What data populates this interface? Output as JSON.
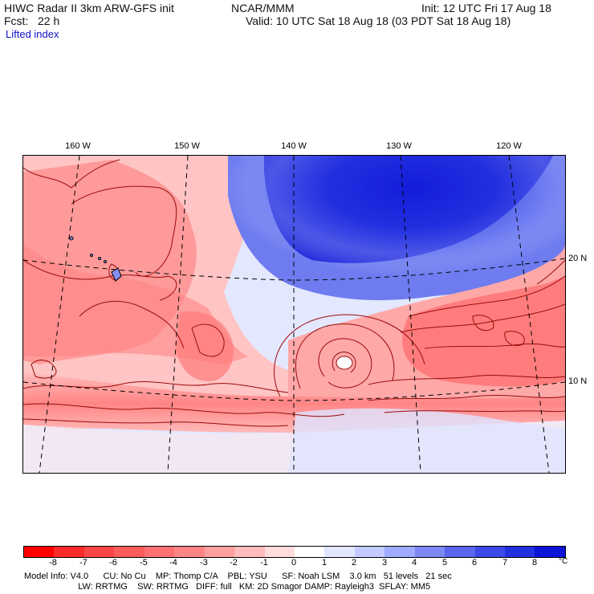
{
  "header": {
    "title": "HIWC Radar II 3km ARW-GFS init",
    "center": "NCAR/MMM",
    "init": "Init: 12 UTC Fri 17 Aug 18",
    "fcst": "Fcst:   22 h",
    "valid": "Valid: 10 UTC Sat 18 Aug 18 (03 PDT Sat 18 Aug 18)",
    "field": "Lifted index"
  },
  "map": {
    "longitude_labels": [
      "160 W",
      "150 W",
      "140 W",
      "130 W",
      "120 W"
    ],
    "latitude_labels": [
      "20 N",
      "10 N"
    ],
    "colors": {
      "negative": "#f04040",
      "positive": "#1a2ee0",
      "contour": "#9a0a0a",
      "grid": "#000000"
    }
  },
  "colorbar": {
    "ticks": [
      "-8",
      "-7",
      "-6",
      "-5",
      "-4",
      "-3",
      "-2",
      "-1",
      "0",
      "1",
      "2",
      "3",
      "4",
      "5",
      "6",
      "7",
      "8"
    ],
    "unit": "°C",
    "colors": [
      "#ff0000",
      "#ff2a2a",
      "#ff4545",
      "#ff5c5c",
      "#ff7070",
      "#ff8585",
      "#ffa0a0",
      "#ffbcbc",
      "#ffdcdc",
      "#ffffff",
      "#e2e6ff",
      "#c4ccff",
      "#a0aaff",
      "#7d88f5",
      "#5a66ee",
      "#3a48e6",
      "#2230e0",
      "#0b14d8"
    ]
  },
  "model_info": {
    "line1": "Model Info: V4.0      CU: No Cu    MP: Thomp C/A    PBL: YSU      SF: Noah LSM    3.0 km   51 levels   21 sec",
    "line2": "                      LW: RRTMG    SW: RRTMG   DIFF: full   KM: 2D Smagor DAMP: Rayleigh3  SFLAY: MM5"
  }
}
